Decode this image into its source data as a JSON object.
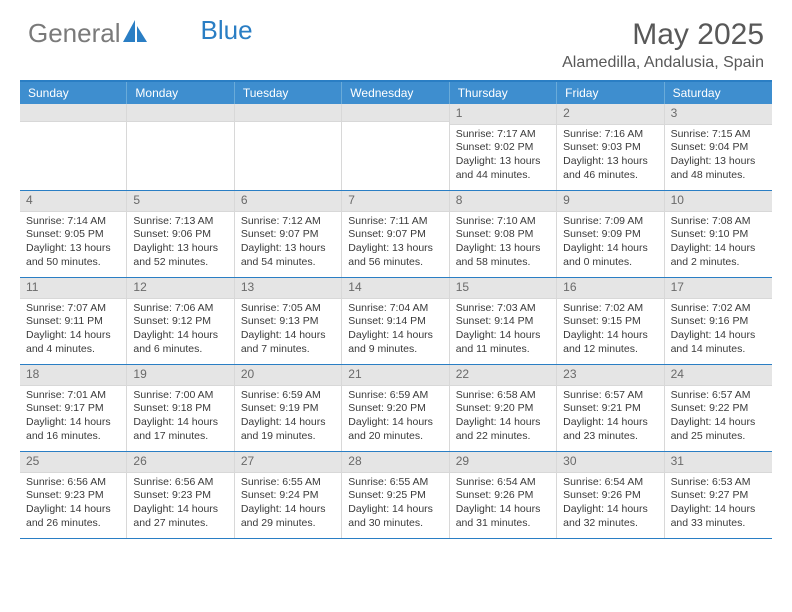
{
  "logo": {
    "text_gray": "General",
    "text_blue": "Blue"
  },
  "title": "May 2025",
  "location": "Alamedilla, Andalusia, Spain",
  "colors": {
    "header_bg": "#3e8ecf",
    "border_blue": "#2a7ec4",
    "daynum_bg": "#e5e5e5",
    "text_gray": "#585858"
  },
  "day_labels": [
    "Sunday",
    "Monday",
    "Tuesday",
    "Wednesday",
    "Thursday",
    "Friday",
    "Saturday"
  ],
  "weeks": [
    [
      {
        "num": "",
        "lines": []
      },
      {
        "num": "",
        "lines": []
      },
      {
        "num": "",
        "lines": []
      },
      {
        "num": "",
        "lines": []
      },
      {
        "num": "1",
        "lines": [
          "Sunrise: 7:17 AM",
          "Sunset: 9:02 PM",
          "Daylight: 13 hours",
          "and 44 minutes."
        ]
      },
      {
        "num": "2",
        "lines": [
          "Sunrise: 7:16 AM",
          "Sunset: 9:03 PM",
          "Daylight: 13 hours",
          "and 46 minutes."
        ]
      },
      {
        "num": "3",
        "lines": [
          "Sunrise: 7:15 AM",
          "Sunset: 9:04 PM",
          "Daylight: 13 hours",
          "and 48 minutes."
        ]
      }
    ],
    [
      {
        "num": "4",
        "lines": [
          "Sunrise: 7:14 AM",
          "Sunset: 9:05 PM",
          "Daylight: 13 hours",
          "and 50 minutes."
        ]
      },
      {
        "num": "5",
        "lines": [
          "Sunrise: 7:13 AM",
          "Sunset: 9:06 PM",
          "Daylight: 13 hours",
          "and 52 minutes."
        ]
      },
      {
        "num": "6",
        "lines": [
          "Sunrise: 7:12 AM",
          "Sunset: 9:07 PM",
          "Daylight: 13 hours",
          "and 54 minutes."
        ]
      },
      {
        "num": "7",
        "lines": [
          "Sunrise: 7:11 AM",
          "Sunset: 9:07 PM",
          "Daylight: 13 hours",
          "and 56 minutes."
        ]
      },
      {
        "num": "8",
        "lines": [
          "Sunrise: 7:10 AM",
          "Sunset: 9:08 PM",
          "Daylight: 13 hours",
          "and 58 minutes."
        ]
      },
      {
        "num": "9",
        "lines": [
          "Sunrise: 7:09 AM",
          "Sunset: 9:09 PM",
          "Daylight: 14 hours",
          "and 0 minutes."
        ]
      },
      {
        "num": "10",
        "lines": [
          "Sunrise: 7:08 AM",
          "Sunset: 9:10 PM",
          "Daylight: 14 hours",
          "and 2 minutes."
        ]
      }
    ],
    [
      {
        "num": "11",
        "lines": [
          "Sunrise: 7:07 AM",
          "Sunset: 9:11 PM",
          "Daylight: 14 hours",
          "and 4 minutes."
        ]
      },
      {
        "num": "12",
        "lines": [
          "Sunrise: 7:06 AM",
          "Sunset: 9:12 PM",
          "Daylight: 14 hours",
          "and 6 minutes."
        ]
      },
      {
        "num": "13",
        "lines": [
          "Sunrise: 7:05 AM",
          "Sunset: 9:13 PM",
          "Daylight: 14 hours",
          "and 7 minutes."
        ]
      },
      {
        "num": "14",
        "lines": [
          "Sunrise: 7:04 AM",
          "Sunset: 9:14 PM",
          "Daylight: 14 hours",
          "and 9 minutes."
        ]
      },
      {
        "num": "15",
        "lines": [
          "Sunrise: 7:03 AM",
          "Sunset: 9:14 PM",
          "Daylight: 14 hours",
          "and 11 minutes."
        ]
      },
      {
        "num": "16",
        "lines": [
          "Sunrise: 7:02 AM",
          "Sunset: 9:15 PM",
          "Daylight: 14 hours",
          "and 12 minutes."
        ]
      },
      {
        "num": "17",
        "lines": [
          "Sunrise: 7:02 AM",
          "Sunset: 9:16 PM",
          "Daylight: 14 hours",
          "and 14 minutes."
        ]
      }
    ],
    [
      {
        "num": "18",
        "lines": [
          "Sunrise: 7:01 AM",
          "Sunset: 9:17 PM",
          "Daylight: 14 hours",
          "and 16 minutes."
        ]
      },
      {
        "num": "19",
        "lines": [
          "Sunrise: 7:00 AM",
          "Sunset: 9:18 PM",
          "Daylight: 14 hours",
          "and 17 minutes."
        ]
      },
      {
        "num": "20",
        "lines": [
          "Sunrise: 6:59 AM",
          "Sunset: 9:19 PM",
          "Daylight: 14 hours",
          "and 19 minutes."
        ]
      },
      {
        "num": "21",
        "lines": [
          "Sunrise: 6:59 AM",
          "Sunset: 9:20 PM",
          "Daylight: 14 hours",
          "and 20 minutes."
        ]
      },
      {
        "num": "22",
        "lines": [
          "Sunrise: 6:58 AM",
          "Sunset: 9:20 PM",
          "Daylight: 14 hours",
          "and 22 minutes."
        ]
      },
      {
        "num": "23",
        "lines": [
          "Sunrise: 6:57 AM",
          "Sunset: 9:21 PM",
          "Daylight: 14 hours",
          "and 23 minutes."
        ]
      },
      {
        "num": "24",
        "lines": [
          "Sunrise: 6:57 AM",
          "Sunset: 9:22 PM",
          "Daylight: 14 hours",
          "and 25 minutes."
        ]
      }
    ],
    [
      {
        "num": "25",
        "lines": [
          "Sunrise: 6:56 AM",
          "Sunset: 9:23 PM",
          "Daylight: 14 hours",
          "and 26 minutes."
        ]
      },
      {
        "num": "26",
        "lines": [
          "Sunrise: 6:56 AM",
          "Sunset: 9:23 PM",
          "Daylight: 14 hours",
          "and 27 minutes."
        ]
      },
      {
        "num": "27",
        "lines": [
          "Sunrise: 6:55 AM",
          "Sunset: 9:24 PM",
          "Daylight: 14 hours",
          "and 29 minutes."
        ]
      },
      {
        "num": "28",
        "lines": [
          "Sunrise: 6:55 AM",
          "Sunset: 9:25 PM",
          "Daylight: 14 hours",
          "and 30 minutes."
        ]
      },
      {
        "num": "29",
        "lines": [
          "Sunrise: 6:54 AM",
          "Sunset: 9:26 PM",
          "Daylight: 14 hours",
          "and 31 minutes."
        ]
      },
      {
        "num": "30",
        "lines": [
          "Sunrise: 6:54 AM",
          "Sunset: 9:26 PM",
          "Daylight: 14 hours",
          "and 32 minutes."
        ]
      },
      {
        "num": "31",
        "lines": [
          "Sunrise: 6:53 AM",
          "Sunset: 9:27 PM",
          "Daylight: 14 hours",
          "and 33 minutes."
        ]
      }
    ]
  ]
}
